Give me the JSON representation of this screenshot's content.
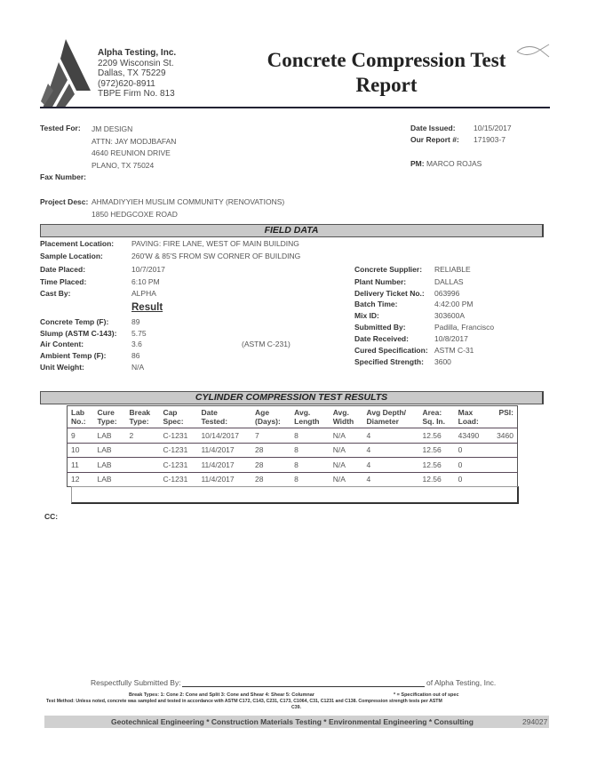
{
  "company": {
    "name": "Alpha Testing, Inc.",
    "address1": "2209 Wisconsin St.",
    "address2": "Dallas, TX  75229",
    "phone": "(972)620-8911",
    "firm": "TBPE Firm No. 813"
  },
  "title": {
    "line1": "Concrete Compression Test",
    "line2": "Report"
  },
  "client": {
    "label": "Tested For:",
    "lines": [
      "JM DESIGN",
      "ATTN:  JAY MODJBAFAN",
      "4640 REUNION DRIVE",
      "PLANO, TX  75024"
    ],
    "fax_label": "Fax Number:"
  },
  "report": {
    "date_label": "Date Issued:",
    "date": "10/15/2017",
    "num_label": "Our Report #:",
    "num": "171903-7",
    "pm_label": "PM:",
    "pm": "MARCO ROJAS"
  },
  "project": {
    "label": "Project Desc:",
    "line1": "AHMADIYYIEH MUSLIM COMMUNITY (RENOVATIONS)",
    "line2": "1850 HEDGCOXE ROAD"
  },
  "field": {
    "title": "FIELD DATA",
    "left": [
      {
        "l": "Placement Location:",
        "v": "PAVING: FIRE LANE, WEST OF MAIN BUILDING"
      },
      {
        "l": "Sample Location:",
        "v": "260'W & 85'S FROM SW CORNER OF BUILDING"
      },
      {
        "l": "Date Placed:",
        "v": "10/7/2017"
      },
      {
        "l": "Time Placed:",
        "v": "6:10 PM"
      },
      {
        "l": "Cast By:",
        "v": "ALPHA"
      }
    ],
    "result_label": "Result",
    "results": [
      {
        "l": "Concrete Temp (F):",
        "v": "89"
      },
      {
        "l": "Slump (ASTM C-143):",
        "v": "5.75"
      },
      {
        "l": "Air Content:",
        "v": "3.6"
      },
      {
        "l": "Ambient Temp (F):",
        "v": "86"
      },
      {
        "l": "Unit Weight:",
        "v": "N/A"
      }
    ],
    "air_method": "(ASTM C-231)",
    "right": [
      {
        "l": "Concrete Supplier:",
        "v": "RELIABLE"
      },
      {
        "l": "Plant Number:",
        "v": "DALLAS"
      },
      {
        "l": "Delivery Ticket No.:",
        "v": "063996"
      },
      {
        "l": "Batch Time:",
        "v": "4:42:00 PM"
      },
      {
        "l": "Mix ID:",
        "v": "303600A"
      },
      {
        "l": "Submitted By:",
        "v": "Padilla, Francisco"
      },
      {
        "l": "Date Received:",
        "v": "10/8/2017"
      },
      {
        "l": "Cured Specification:",
        "v": "ASTM C-31"
      },
      {
        "l": "Specified Strength:",
        "v": "3600"
      }
    ]
  },
  "cylinder": {
    "title": "CYLINDER COMPRESSION TEST RESULTS",
    "headers": [
      "Lab\nNo.:",
      "Cure\nType:",
      "Break\nType:",
      "Cap\nSpec:",
      "Date\nTested:",
      "Age\n(Days):",
      "Avg.\nLength",
      "Avg.\nWidth",
      "Avg Depth/\nDiameter",
      "Area:\nSq. In.",
      "Max\nLoad:",
      "PSI:"
    ],
    "rows": [
      [
        "9",
        "LAB",
        "2",
        "C-1231",
        "10/14/2017",
        "7",
        "8",
        "N/A",
        "4",
        "12.56",
        "43490",
        "3460"
      ],
      [
        "10",
        "LAB",
        "",
        "C-1231",
        "11/4/2017",
        "28",
        "8",
        "N/A",
        "4",
        "12.56",
        "0",
        ""
      ],
      [
        "11",
        "LAB",
        "",
        "C-1231",
        "11/4/2017",
        "28",
        "8",
        "N/A",
        "4",
        "12.56",
        "0",
        ""
      ],
      [
        "12",
        "LAB",
        "",
        "C-1231",
        "11/4/2017",
        "28",
        "8",
        "N/A",
        "4",
        "12.56",
        "0",
        ""
      ]
    ]
  },
  "cc_label": "CC:",
  "signature": {
    "label": "Respectfully Submitted By:",
    "suffix": "of Alpha Testing, Inc."
  },
  "notes": {
    "break_types": "Break Types:  1: Cone     2: Cone and  Split    3: Cone and Shear    4: Shear    5: Columnar",
    "spec_note": "* = Specification out of spec",
    "method": "Test Method: Unless noted, concrete was sampled and tested in accordance with ASTM C172, C143, C231, C173, C1064, C31, C1231 and C138. Compression strength tests per ASTM",
    "method2": "C39."
  },
  "footer": {
    "text": "Geotechnical Engineering * Construction Materials Testing *  Environmental Engineering * Consulting",
    "code": "294027"
  }
}
